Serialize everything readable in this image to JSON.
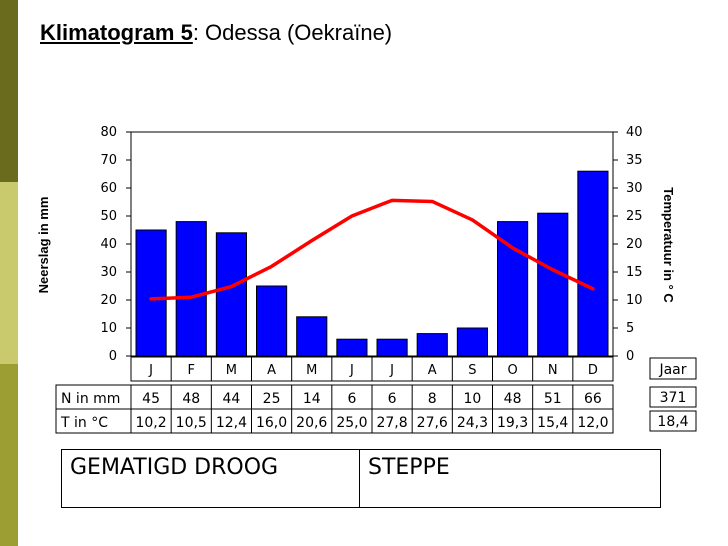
{
  "page": {
    "title_strong": "Klimatogram 5",
    "title_rest": ": Odessa (Oekraïne)"
  },
  "colors": {
    "bar": "#0000ff",
    "line": "#ff0000",
    "sidebar_dark": "#6b6b1e",
    "sidebar_mid": "#c9ca6e",
    "sidebar_low": "#9c9d32"
  },
  "chart_data": {
    "type": "bar",
    "title": "Klimatogram 5: Odessa (Oekraïne)",
    "categories": [
      "J",
      "F",
      "M",
      "A",
      "M",
      "J",
      "J",
      "A",
      "S",
      "O",
      "N",
      "D"
    ],
    "series": [
      {
        "name": "Neerslag in mm",
        "type": "bar",
        "axis": "left",
        "values": [
          45,
          48,
          44,
          25,
          14,
          6,
          6,
          8,
          10,
          48,
          51,
          66
        ]
      },
      {
        "name": "Temperatuur in °C",
        "type": "line",
        "axis": "right",
        "values": [
          10.2,
          10.5,
          12.4,
          16.0,
          20.6,
          25.0,
          27.8,
          27.6,
          24.3,
          19.3,
          15.4,
          12.0
        ]
      }
    ],
    "ylabel": "Neerslag in mm",
    "y2label": "Temperatuur in ° C",
    "ylim": [
      0,
      80
    ],
    "y2lim": [
      0,
      40
    ],
    "yticks": [
      "0",
      "10",
      "20",
      "30",
      "40",
      "50",
      "60",
      "70",
      "80"
    ],
    "y2ticks": [
      "0",
      "5",
      "10",
      "15",
      "20",
      "25",
      "30",
      "35",
      "40"
    ],
    "grid": false,
    "table": {
      "rows": [
        {
          "label": "N in mm",
          "values": [
            "45",
            "48",
            "44",
            "25",
            "14",
            "6",
            "6",
            "8",
            "10",
            "48",
            "51",
            "66"
          ]
        },
        {
          "label": "T in °C",
          "values": [
            "10,2",
            "10,5",
            "12,4",
            "16,0",
            "20,6",
            "25,0",
            "27,8",
            "27,6",
            "24,3",
            "19,3",
            "15,4",
            "12,0"
          ]
        }
      ],
      "year_header": "Jaar",
      "year_values": [
        "371",
        "18,4"
      ]
    }
  },
  "classification": {
    "climate_type": "GEMATIGD DROOG",
    "vegetation": "STEPPE"
  }
}
